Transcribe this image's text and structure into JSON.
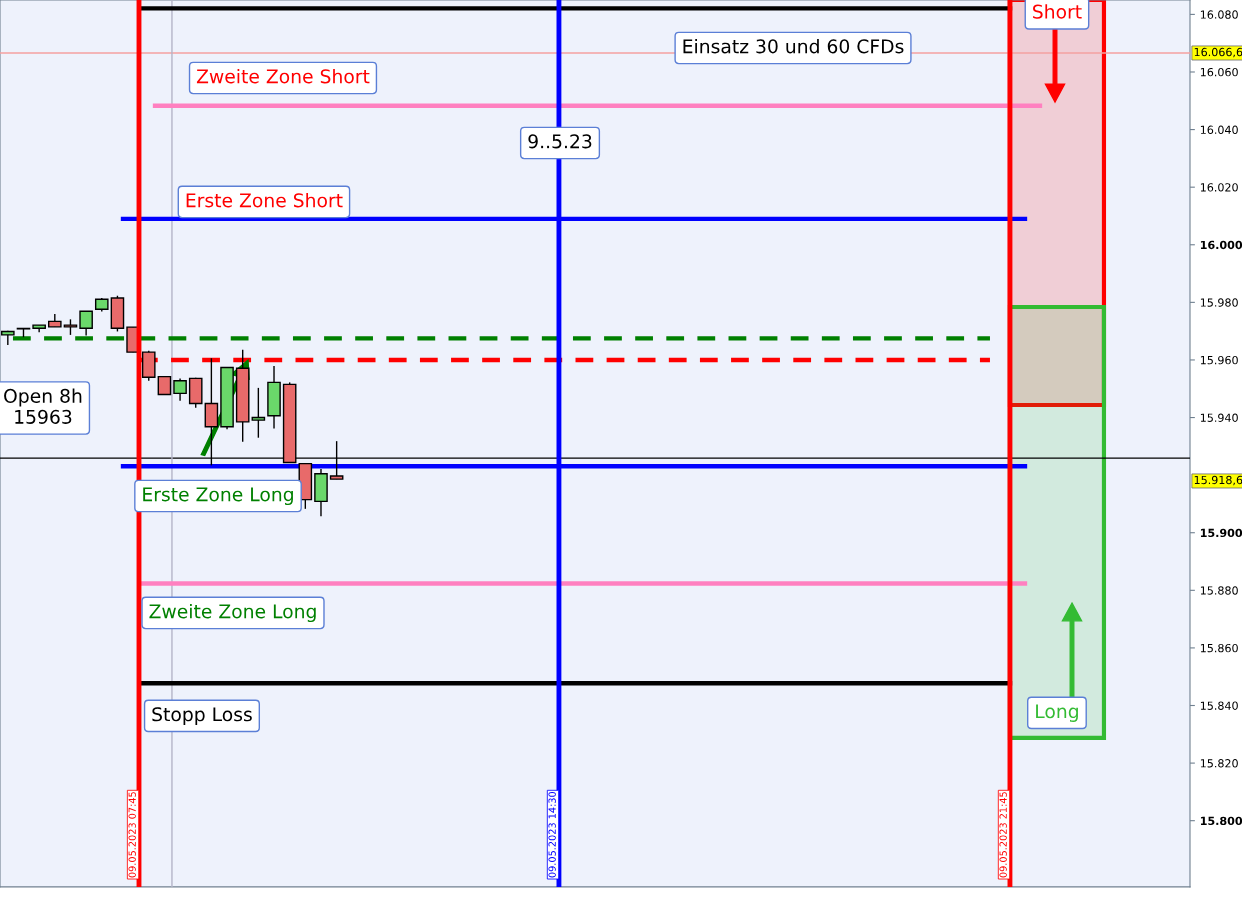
{
  "chart_data": {
    "type": "candlestick",
    "categories": [
      null,
      null,
      null,
      null,
      null,
      null,
      null,
      null,
      null,
      null,
      null,
      null,
      null,
      null,
      null,
      null,
      null,
      null,
      null,
      null,
      null,
      null,
      null,
      null,
      null,
      null,
      null,
      null,
      null,
      null,
      null,
      null,
      null,
      null,
      null,
      null,
      null,
      null,
      null,
      null,
      null,
      null,
      null,
      null,
      null,
      null,
      null,
      null,
      null,
      null,
      null,
      null,
      null,
      null,
      null,
      null,
      null,
      null,
      null,
      null,
      null,
      null,
      null,
      null,
      null,
      null,
      null,
      null,
      null,
      null,
      null,
      null,
      null,
      null,
      null,
      null
    ],
    "ohlc": [
      [
        15968.7,
        15970.1,
        15965.2,
        15969.9
      ],
      [
        15970.8,
        15971.0,
        15967.9,
        15970.9
      ],
      [
        15971.0,
        15972.1,
        15969.6,
        15972.1
      ],
      [
        15973.4,
        15976.0,
        15971.5,
        15971.5
      ],
      [
        15972.1,
        15974.1,
        15968.7,
        15971.5
      ],
      [
        15971.0,
        15976.9,
        15968.5,
        15976.9
      ],
      [
        15977.6,
        15981.5,
        15976.8,
        15981.1
      ],
      [
        15981.5,
        15982.3,
        15969.9,
        15971.0
      ],
      [
        15971.4,
        15971.4,
        15962.7,
        15962.7
      ],
      [
        15962.7,
        15963.2,
        15952.8,
        15954.0
      ],
      [
        15954.2,
        15954.2,
        15948.0,
        15948.0
      ],
      [
        15948.4,
        15953.6,
        15945.8,
        15952.8
      ],
      [
        15953.6,
        15953.8,
        15943.4,
        15944.9
      ],
      [
        15944.9,
        15960.6,
        15923.4,
        15936.8
      ],
      [
        15936.8,
        15957.4,
        15935.9,
        15957.4
      ],
      [
        15957.1,
        15963.5,
        15931.6,
        15938.5
      ],
      [
        15939.1,
        15950.3,
        15933.0,
        15940.0
      ],
      [
        15940.6,
        15957.9,
        15936.2,
        15952.2
      ],
      [
        15951.5,
        15952.2,
        15924.4,
        15924.4
      ],
      [
        15924.0,
        15924.0,
        15908.3,
        15911.5
      ],
      [
        15910.9,
        15922.1,
        15905.7,
        15920.5
      ],
      [
        15919.7,
        15931.8,
        15918.6,
        15918.6
      ],
      null,
      null,
      null,
      null,
      null,
      null,
      null,
      null,
      null,
      null,
      null,
      null,
      null,
      null,
      null,
      null,
      null,
      null,
      null,
      null,
      null,
      null,
      null,
      null,
      null,
      null,
      null,
      null,
      null,
      null,
      null,
      null,
      null,
      null,
      null,
      null,
      null,
      null,
      null,
      null,
      null,
      null,
      null,
      null,
      null,
      null,
      null,
      null,
      null,
      null,
      null,
      null,
      null,
      null
    ],
    "colors": [
      "#6ad86a",
      "#6ad86a",
      "#6ad86a",
      "#e86a6a",
      "#e86a6a",
      "#6ad86a",
      "#6ad86a",
      "#e86a6a",
      "#e86a6a",
      "#e86a6a",
      "#e86a6a",
      "#6ad86a",
      "#e86a6a",
      "#e86a6a",
      "#6ad86a",
      "#e86a6a",
      "#6ad86a",
      "#6ad86a",
      "#e86a6a",
      "#e86a6a",
      "#6ad86a",
      "#e86a6a",
      null,
      null,
      null,
      null,
      null,
      null,
      null,
      null,
      null,
      null,
      null,
      null,
      null,
      null,
      null,
      null,
      null,
      null,
      null,
      null,
      null,
      null,
      null,
      null,
      null,
      null,
      null,
      null,
      null,
      null,
      null,
      null,
      null,
      null,
      null,
      null,
      null,
      null,
      null,
      null,
      null,
      null,
      null,
      null,
      null,
      null,
      null,
      null,
      null,
      null,
      null,
      null,
      null,
      null
    ],
    "ref_lines": [
      {
        "axis": "y",
        "value": 16082.1,
        "color": "#000000",
        "line_style": "solid"
      },
      {
        "axis": "y",
        "value": 16048.3,
        "color": "#ff80c0",
        "line_style": "solid"
      },
      {
        "axis": "y",
        "value": 16009.0,
        "color": "#0000ff",
        "line_style": "solid"
      },
      {
        "axis": "y",
        "value": 15967.5,
        "color": "#008000",
        "line_style": "dashed"
      },
      {
        "axis": "y",
        "value": 15960.0,
        "color": "#ff0000",
        "line_style": "dashed"
      },
      {
        "axis": "y",
        "value": 15923.1,
        "color": "#0000ff",
        "line_style": "solid"
      },
      {
        "axis": "y",
        "value": 15882.4,
        "color": "#ff80c0",
        "line_style": "solid"
      },
      {
        "axis": "y",
        "value": 15847.7,
        "color": "#000000",
        "line_style": "solid"
      },
      {
        "axis": "y",
        "value": 16066.6,
        "label": "16.066,6",
        "color": "#f4a0a0"
      },
      {
        "axis": "y",
        "value": 15925.9,
        "color": "#000000"
      }
    ],
    "annotations": [
      "Einsatz 30 und 60 CFDs",
      "Zweite Zone Short",
      "9..5.23",
      "Erste Zone Short",
      "Open 8h\n15963",
      "Erste Zone Long",
      "Zweite Zone Long",
      "Stopp Loss",
      "Long",
      "Short",
      "15.918,6",
      "09.05.2023 07:45",
      "09.05.2023 14:30",
      "09.05.2023 21:45"
    ],
    "ylim": [
      15777,
      16085
    ],
    "yticks": [
      {
        "value": 15800,
        "label": "15.800"
      },
      {
        "value": 15820,
        "label": "15.820"
      },
      {
        "value": 15840,
        "label": "15.840"
      },
      {
        "value": 15860,
        "label": "15.860"
      },
      {
        "value": 15880,
        "label": "15.880"
      },
      {
        "value": 15900,
        "label": "15.900"
      },
      {
        "value": 15940,
        "label": "15.940"
      },
      {
        "value": 15960,
        "label": "15.960"
      },
      {
        "value": 15980,
        "label": "15.980"
      },
      {
        "value": 16000,
        "label": "16.000"
      },
      {
        "value": 16020,
        "label": "16.020"
      },
      {
        "value": 16040,
        "label": "16.040"
      },
      {
        "value": 16060,
        "label": "16.060"
      },
      {
        "value": 16080,
        "label": "16.080"
      }
    ],
    "tick_labels": "y",
    "grid": false,
    "legend": false
  }
}
